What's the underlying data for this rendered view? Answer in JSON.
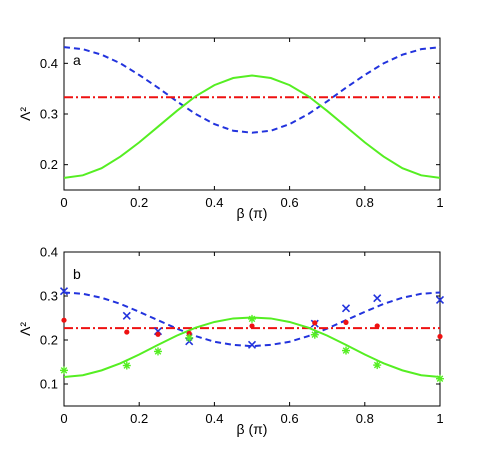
{
  "chart_data": [
    {
      "type": "line",
      "panel_label": "a",
      "xlabel": "β (π)",
      "ylabel": "Λ²",
      "xlim": [
        0,
        1
      ],
      "ylim": [
        0.15,
        0.45
      ],
      "xticks": [
        "0",
        "0.2",
        "0.4",
        "0.6",
        "0.8",
        "1"
      ],
      "yticks": [
        "0.2",
        "0.3",
        "0.4"
      ],
      "grid": false,
      "x": [
        0,
        0.05,
        0.1,
        0.15,
        0.2,
        0.25,
        0.3,
        0.35,
        0.4,
        0.45,
        0.5,
        0.55,
        0.6,
        0.65,
        0.7,
        0.75,
        0.8,
        0.85,
        0.9,
        0.95,
        1
      ],
      "series": [
        {
          "style": "dashed",
          "color": "#2233dd",
          "values": [
            0.432,
            0.428,
            0.417,
            0.4,
            0.377,
            0.352,
            0.325,
            0.3,
            0.28,
            0.267,
            0.263,
            0.267,
            0.28,
            0.3,
            0.325,
            0.352,
            0.377,
            0.4,
            0.417,
            0.428,
            0.432
          ]
        },
        {
          "style": "dashdot",
          "color": "#ee1111",
          "values": [
            0.333,
            0.333,
            0.333,
            0.333,
            0.333,
            0.333,
            0.333,
            0.333,
            0.333,
            0.333,
            0.333,
            0.333,
            0.333,
            0.333,
            0.333,
            0.333,
            0.333,
            0.333,
            0.333,
            0.333,
            0.333
          ]
        },
        {
          "style": "solid",
          "color": "#55ee22",
          "values": [
            0.174,
            0.179,
            0.193,
            0.216,
            0.244,
            0.275,
            0.306,
            0.335,
            0.357,
            0.371,
            0.376,
            0.371,
            0.357,
            0.335,
            0.306,
            0.275,
            0.244,
            0.216,
            0.193,
            0.179,
            0.174
          ]
        }
      ]
    },
    {
      "type": "line",
      "panel_label": "b",
      "xlabel": "β (π)",
      "ylabel": "Λ²",
      "xlim": [
        0,
        1
      ],
      "ylim": [
        0.05,
        0.4
      ],
      "xticks": [
        "0",
        "0.2",
        "0.4",
        "0.6",
        "0.8",
        "1"
      ],
      "yticks": [
        "0.1",
        "0.2",
        "0.3",
        "0.4"
      ],
      "grid": false,
      "x": [
        0,
        0.05,
        0.1,
        0.15,
        0.2,
        0.25,
        0.3,
        0.35,
        0.4,
        0.45,
        0.5,
        0.55,
        0.6,
        0.65,
        0.7,
        0.75,
        0.8,
        0.85,
        0.9,
        0.95,
        1
      ],
      "series": [
        {
          "style": "dashed",
          "color": "#2233dd",
          "values": [
            0.308,
            0.305,
            0.296,
            0.282,
            0.264,
            0.245,
            0.226,
            0.209,
            0.196,
            0.189,
            0.186,
            0.189,
            0.196,
            0.209,
            0.226,
            0.245,
            0.264,
            0.282,
            0.296,
            0.305,
            0.308
          ]
        },
        {
          "style": "dashdot",
          "color": "#ee1111",
          "values": [
            0.227,
            0.227,
            0.227,
            0.227,
            0.227,
            0.227,
            0.227,
            0.227,
            0.227,
            0.227,
            0.227,
            0.227,
            0.227,
            0.227,
            0.227,
            0.227,
            0.227,
            0.227,
            0.227,
            0.227,
            0.227
          ]
        },
        {
          "style": "solid",
          "color": "#55ee22",
          "values": [
            0.116,
            0.12,
            0.131,
            0.147,
            0.167,
            0.189,
            0.21,
            0.228,
            0.241,
            0.249,
            0.251,
            0.249,
            0.241,
            0.228,
            0.21,
            0.189,
            0.167,
            0.147,
            0.131,
            0.12,
            0.116
          ]
        }
      ],
      "markers": [
        {
          "marker": "x",
          "color": "#2233dd",
          "x": [
            0,
            0.167,
            0.25,
            0.333,
            0.5,
            0.667,
            0.75,
            0.833,
            1
          ],
          "y": [
            0.311,
            0.255,
            0.22,
            0.197,
            0.189,
            0.237,
            0.272,
            0.295,
            0.291
          ]
        },
        {
          "marker": "dot",
          "color": "#ee1111",
          "x": [
            0,
            0.167,
            0.25,
            0.333,
            0.5,
            0.667,
            0.75,
            0.833,
            1
          ],
          "y": [
            0.245,
            0.218,
            0.213,
            0.215,
            0.232,
            0.239,
            0.24,
            0.232,
            0.208
          ]
        },
        {
          "marker": "asterisk",
          "color": "#55ee22",
          "x": [
            0,
            0.167,
            0.25,
            0.333,
            0.5,
            0.667,
            0.75,
            0.833,
            1
          ],
          "y": [
            0.131,
            0.142,
            0.174,
            0.205,
            0.248,
            0.212,
            0.176,
            0.143,
            0.112
          ]
        }
      ]
    }
  ]
}
